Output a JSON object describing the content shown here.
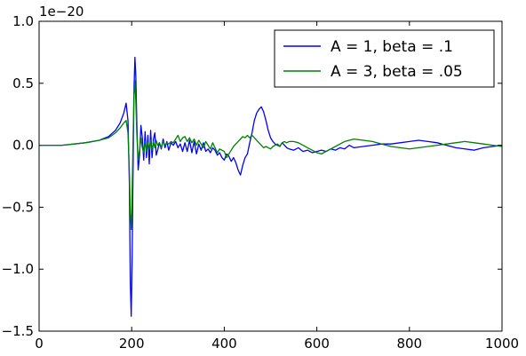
{
  "chart_data": {
    "type": "line",
    "title": "",
    "xlabel": "",
    "ylabel": "",
    "offset_label": "1e−20",
    "xlim": [
      0,
      1000
    ],
    "ylim": [
      -1.5,
      1.0
    ],
    "xticks": [
      0,
      200,
      400,
      600,
      800,
      1000
    ],
    "yticks": [
      -1.5,
      -1.0,
      -0.5,
      0.0,
      0.5,
      1.0
    ],
    "xtick_labels": [
      "0",
      "200",
      "400",
      "600",
      "800",
      "1000"
    ],
    "ytick_labels": [
      "−1.5",
      "−1.0",
      "−0.5",
      "0.0",
      "0.5",
      "1.0"
    ],
    "grid": false,
    "legend_position": "top-right",
    "series": [
      {
        "name": "A = 1, beta = .1",
        "color": "#0000ff",
        "x": [
          0,
          50,
          100,
          130,
          150,
          165,
          175,
          183,
          188,
          192,
          195,
          197,
          199,
          201,
          203,
          205,
          207,
          209,
          211,
          214,
          217,
          220,
          223,
          226,
          229,
          232,
          235,
          238,
          241,
          244,
          247,
          250,
          253,
          256,
          260,
          264,
          268,
          272,
          276,
          280,
          285,
          290,
          295,
          300,
          305,
          310,
          315,
          320,
          325,
          330,
          335,
          340,
          345,
          350,
          355,
          360,
          365,
          370,
          375,
          380,
          385,
          390,
          395,
          400,
          405,
          410,
          415,
          420,
          425,
          430,
          435,
          440,
          445,
          450,
          455,
          460,
          465,
          470,
          475,
          480,
          485,
          490,
          495,
          500,
          505,
          510,
          515,
          520,
          525,
          530,
          535,
          540,
          550,
          560,
          570,
          580,
          590,
          600,
          610,
          620,
          630,
          640,
          650,
          660,
          670,
          680,
          700,
          720,
          740,
          760,
          780,
          800,
          820,
          840,
          860,
          880,
          900,
          920,
          940,
          960,
          980,
          1000
        ],
        "values": [
          0.0,
          0.0,
          0.02,
          0.04,
          0.07,
          0.12,
          0.18,
          0.26,
          0.34,
          0.2,
          -0.3,
          -1.1,
          -1.38,
          -0.9,
          -0.2,
          0.45,
          0.71,
          0.55,
          0.2,
          -0.2,
          -0.08,
          0.16,
          0.06,
          -0.12,
          0.11,
          -0.1,
          0.08,
          -0.15,
          0.12,
          -0.1,
          0.05,
          0.1,
          -0.08,
          -0.04,
          0.02,
          -0.03,
          0.05,
          -0.02,
          0.03,
          -0.04,
          0.02,
          0.0,
          0.03,
          -0.02,
          0.01,
          -0.05,
          0.02,
          -0.05,
          0.04,
          -0.06,
          0.03,
          -0.07,
          0.01,
          -0.04,
          0.02,
          -0.05,
          -0.03,
          -0.06,
          -0.02,
          -0.04,
          -0.08,
          -0.06,
          -0.1,
          -0.12,
          -0.07,
          -0.09,
          -0.13,
          -0.1,
          -0.14,
          -0.2,
          -0.24,
          -0.16,
          -0.1,
          -0.07,
          0.02,
          0.1,
          0.2,
          0.26,
          0.29,
          0.31,
          0.27,
          0.2,
          0.12,
          0.06,
          0.03,
          0.01,
          0.0,
          -0.01,
          0.02,
          0.0,
          -0.02,
          -0.03,
          -0.04,
          -0.02,
          -0.05,
          -0.04,
          -0.06,
          -0.05,
          -0.04,
          -0.05,
          -0.03,
          -0.04,
          -0.02,
          -0.03,
          0.0,
          -0.02,
          -0.01,
          0.0,
          0.01,
          0.01,
          0.02,
          0.03,
          0.04,
          0.03,
          0.02,
          0.0,
          -0.02,
          -0.03,
          -0.04,
          -0.02,
          -0.01,
          0.0
        ]
      },
      {
        "name": "A = 3, beta = .05",
        "color": "#008000",
        "x": [
          0,
          50,
          100,
          130,
          150,
          165,
          175,
          183,
          188,
          192,
          195,
          197,
          199,
          201,
          203,
          205,
          207,
          209,
          211,
          214,
          217,
          220,
          223,
          226,
          229,
          232,
          235,
          238,
          241,
          244,
          247,
          250,
          253,
          256,
          260,
          264,
          268,
          272,
          276,
          280,
          285,
          290,
          295,
          300,
          305,
          310,
          315,
          320,
          325,
          330,
          335,
          340,
          345,
          350,
          355,
          360,
          365,
          370,
          375,
          380,
          385,
          390,
          395,
          400,
          405,
          410,
          415,
          420,
          425,
          430,
          435,
          440,
          445,
          450,
          455,
          460,
          465,
          470,
          475,
          480,
          485,
          490,
          495,
          500,
          505,
          510,
          515,
          520,
          525,
          530,
          535,
          540,
          550,
          560,
          570,
          580,
          590,
          600,
          610,
          620,
          630,
          640,
          650,
          660,
          670,
          680,
          700,
          720,
          740,
          760,
          780,
          800,
          820,
          840,
          860,
          880,
          900,
          920,
          940,
          960,
          980,
          1000
        ],
        "values": [
          0.0,
          0.0,
          0.02,
          0.04,
          0.06,
          0.1,
          0.14,
          0.18,
          0.2,
          0.1,
          -0.2,
          -0.55,
          -0.68,
          -0.4,
          0.05,
          0.4,
          0.52,
          0.35,
          0.1,
          -0.12,
          -0.04,
          0.06,
          -0.02,
          -0.06,
          0.03,
          -0.05,
          0.02,
          -0.03,
          0.04,
          -0.04,
          0.03,
          -0.02,
          0.04,
          0.0,
          0.02,
          -0.02,
          0.03,
          0.0,
          0.02,
          0.01,
          0.03,
          0.02,
          0.05,
          0.08,
          0.03,
          0.06,
          0.07,
          0.03,
          0.06,
          0.02,
          0.05,
          0.0,
          0.04,
          0.01,
          -0.02,
          0.03,
          0.0,
          -0.03,
          0.02,
          -0.02,
          -0.06,
          -0.03,
          -0.04,
          -0.05,
          -0.1,
          -0.07,
          -0.04,
          -0.01,
          0.01,
          0.03,
          0.05,
          0.07,
          0.06,
          0.08,
          0.06,
          0.08,
          0.06,
          0.04,
          0.02,
          0.0,
          -0.02,
          -0.01,
          -0.02,
          -0.03,
          -0.01,
          0.0,
          0.01,
          -0.01,
          0.02,
          0.03,
          0.02,
          0.03,
          0.03,
          0.02,
          0.0,
          -0.02,
          -0.04,
          -0.06,
          -0.07,
          -0.05,
          -0.03,
          -0.01,
          0.01,
          0.03,
          0.04,
          0.05,
          0.04,
          0.03,
          0.01,
          -0.01,
          -0.02,
          -0.03,
          -0.02,
          -0.01,
          0.0,
          0.01,
          0.02,
          0.03,
          0.02,
          0.01,
          0.0,
          -0.01
        ]
      }
    ]
  }
}
